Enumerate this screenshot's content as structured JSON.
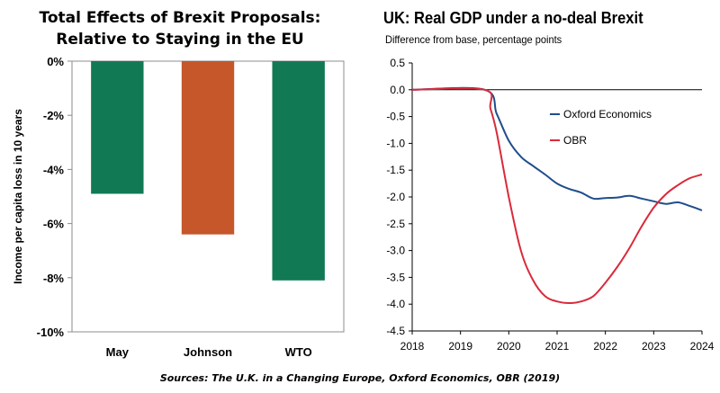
{
  "left_chart": {
    "title_line1": "Total Effects of Brexit Proposals:",
    "title_line2": "Relative to Staying in the EU"
  },
  "right_chart": {
    "title": "UK: Real GDP under a no-deal Brexit",
    "subtitle": "Difference from base, percentage points"
  },
  "source": "Sources: The U.K. in a Changing Europe, Oxford Economics, OBR (2019)",
  "colors": {
    "may": "#117a55",
    "johnson": "#c5572b",
    "wto": "#117a55",
    "oxford": "#1f4e8c",
    "obr": "#d92b3a"
  },
  "chart_data": [
    {
      "type": "bar",
      "categories": [
        "May",
        "Johnson",
        "WTO"
      ],
      "values": [
        -4.9,
        -6.4,
        -8.1
      ],
      "xlabel": "",
      "ylabel": "Income per capita loss in 10 years",
      "ylim": [
        -10,
        0
      ],
      "yticks": [
        0,
        -2,
        -4,
        -6,
        -8,
        -10
      ],
      "ytick_labels": [
        "0%",
        "-2%",
        "-4%",
        "-6%",
        "-8%",
        "-10%"
      ],
      "grid": false,
      "legend": "none"
    },
    {
      "type": "line",
      "xlim": [
        2018,
        2024
      ],
      "ylim": [
        -4.5,
        0.5
      ],
      "xticks": [
        2018,
        2019,
        2020,
        2021,
        2022,
        2023,
        2024
      ],
      "xtick_labels": [
        "2018",
        "2019",
        "2020",
        "2021",
        "2022",
        "2023",
        "2024"
      ],
      "yticks": [
        0.5,
        0,
        -0.5,
        -1,
        -1.5,
        -2,
        -2.5,
        -3,
        -3.5,
        -4,
        -4.5
      ],
      "ytick_labels": [
        "0.5",
        "0.0",
        "-0.5",
        "-1.0",
        "-1.5",
        "-2.0",
        "-2.5",
        "-3.0",
        "-3.5",
        "-4.0",
        "-4.5"
      ],
      "grid": false,
      "legend": "top-right",
      "series": [
        {
          "name": "Oxford Economics",
          "x": [
            2018,
            2019.5,
            2019.75,
            2020,
            2020.25,
            2020.5,
            2020.75,
            2021,
            2021.25,
            2021.5,
            2021.75,
            2022,
            2022.25,
            2022.5,
            2022.75,
            2023,
            2023.25,
            2023.5,
            2023.75,
            2024
          ],
          "y": [
            0,
            0,
            -0.45,
            -0.95,
            -1.25,
            -1.42,
            -1.58,
            -1.75,
            -1.85,
            -1.92,
            -2.03,
            -2.02,
            -2.01,
            -1.98,
            -2.03,
            -2.08,
            -2.13,
            -2.1,
            -2.17,
            -2.25
          ]
        },
        {
          "name": "OBR",
          "x": [
            2018,
            2019.5,
            2019.62,
            2019.75,
            2020,
            2020.25,
            2020.5,
            2020.75,
            2021,
            2021.25,
            2021.5,
            2021.75,
            2022,
            2022.25,
            2022.5,
            2022.75,
            2023,
            2023.25,
            2023.5,
            2023.75,
            2024
          ],
          "y": [
            0,
            0,
            -0.35,
            -0.8,
            -2.0,
            -3.0,
            -3.55,
            -3.85,
            -3.95,
            -3.98,
            -3.95,
            -3.85,
            -3.6,
            -3.3,
            -2.95,
            -2.55,
            -2.2,
            -1.95,
            -1.78,
            -1.65,
            -1.58
          ]
        }
      ]
    }
  ]
}
